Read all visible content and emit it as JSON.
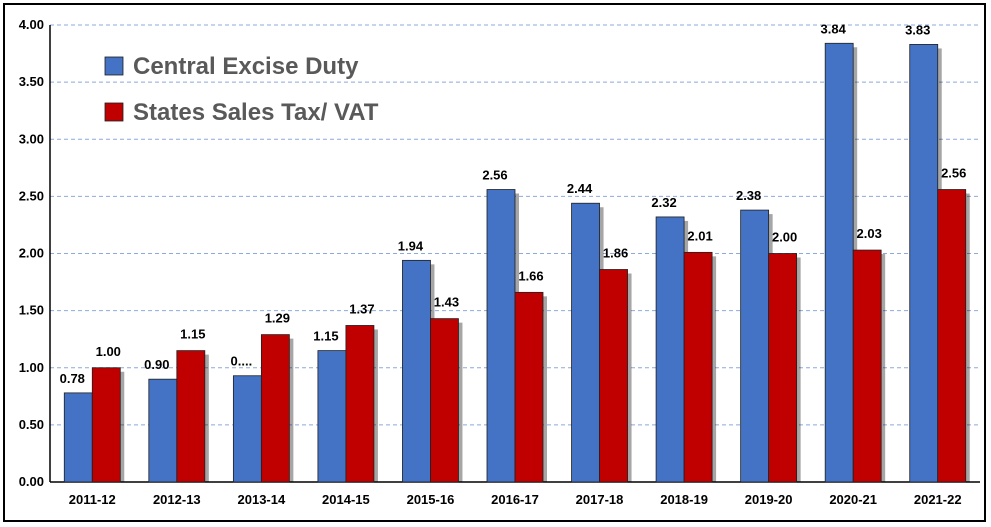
{
  "chart_data": {
    "type": "bar",
    "title": "",
    "xlabel": "",
    "ylabel": "",
    "categories": [
      "2011-12",
      "2012-13",
      "2013-14",
      "2014-15",
      "2015-16",
      "2016-17",
      "2017-18",
      "2018-19",
      "2019-20",
      "2020-21",
      "2021-22"
    ],
    "ylim": [
      0,
      4
    ],
    "y_ticks": [
      "0.00",
      "0.50",
      "1.00",
      "1.50",
      "2.00",
      "2.50",
      "3.00",
      "3.50",
      "4.00"
    ],
    "grid": true,
    "legend_position": "top-left",
    "series": [
      {
        "name": "Central Excise Duty",
        "color": "#4472C4",
        "values": [
          0.78,
          0.9,
          0.93,
          1.15,
          1.94,
          2.56,
          2.44,
          2.32,
          2.38,
          3.84,
          3.83
        ],
        "labels": [
          "0.78",
          "0.90",
          "0....",
          "1.15",
          "1.94",
          "2.56",
          "2.44",
          "2.32",
          "2.38",
          "3.84",
          "3.83"
        ]
      },
      {
        "name": "States Sales Tax/ VAT",
        "color": "#C00000",
        "values": [
          1.0,
          1.15,
          1.29,
          1.37,
          1.43,
          1.66,
          1.86,
          2.01,
          2.0,
          2.03,
          2.56
        ],
        "labels": [
          "1.00",
          "1.15",
          "1.29",
          "1.37",
          "1.43",
          "1.66",
          "1.86",
          "2.01",
          "2.00",
          "2.03",
          "2.56"
        ]
      }
    ]
  }
}
